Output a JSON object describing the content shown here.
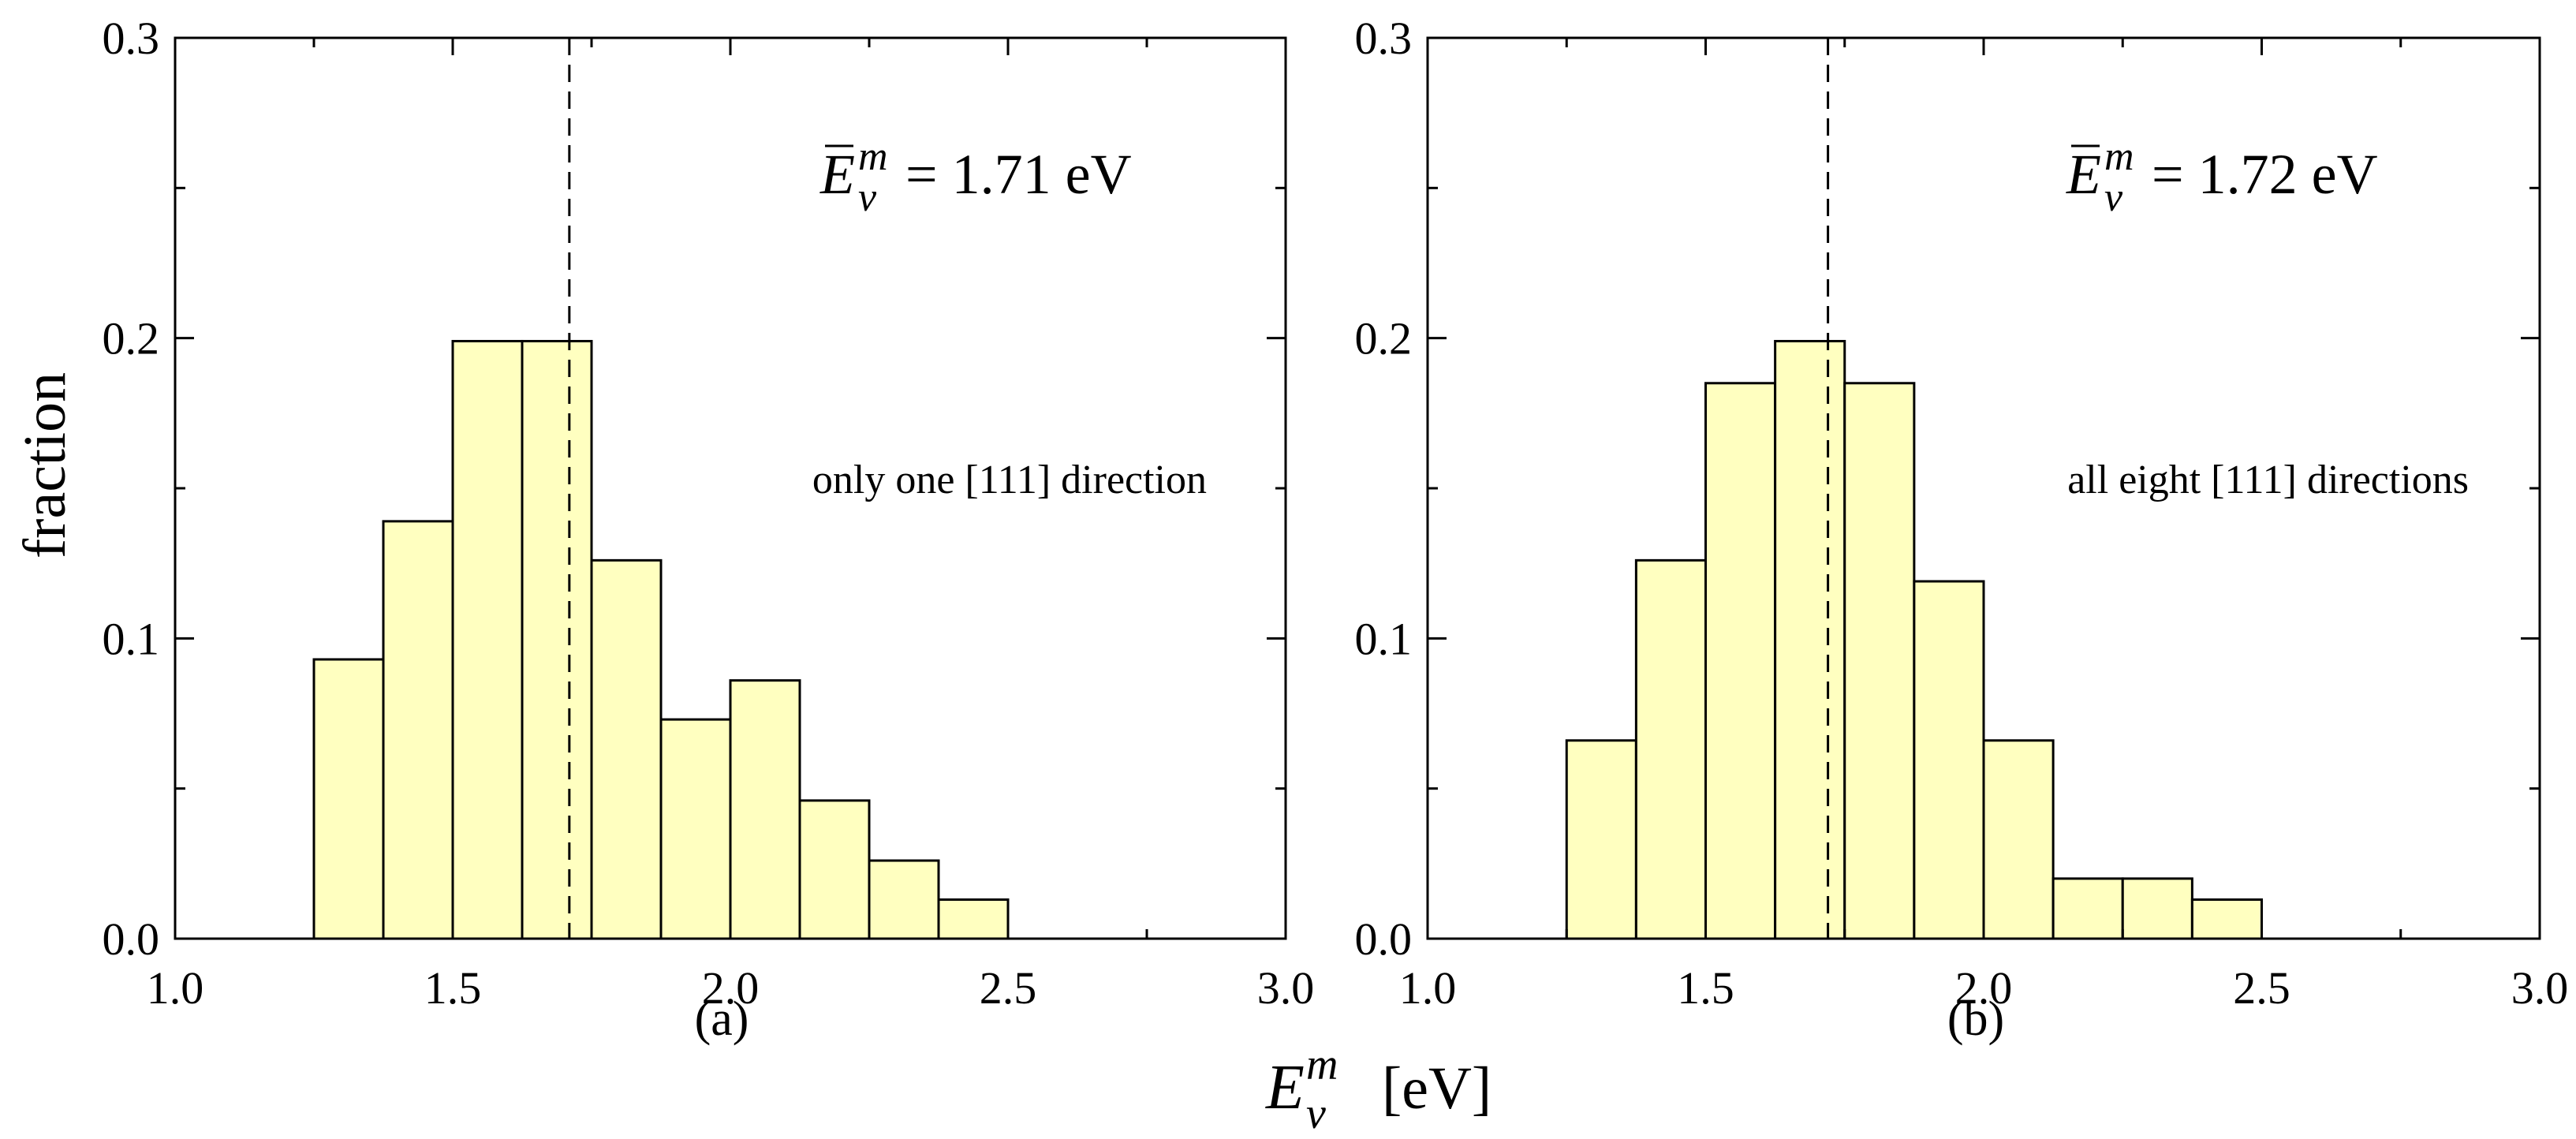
{
  "figure": {
    "xlabel_symbol": "E",
    "xlabel_superscript": "m",
    "xlabel_subscript": "v",
    "xlabel_unit": "[eV]",
    "ylabel": "fraction"
  },
  "chart_data": [
    {
      "type": "bar",
      "panel_label": "(a)",
      "annotation": "only one [111] direction",
      "mean_label": {
        "symbol": "E",
        "superscript": "m",
        "subscript": "v",
        "equals": "= 1.71 eV"
      },
      "mean_value": 1.71,
      "bin_edges": [
        1.25,
        1.375,
        1.5,
        1.625,
        1.75,
        1.875,
        2.0,
        2.125,
        2.25,
        2.375,
        2.5
      ],
      "values": [
        0.093,
        0.139,
        0.199,
        0.199,
        0.126,
        0.073,
        0.086,
        0.046,
        0.026,
        0.013
      ],
      "xlim": [
        1.0,
        3.0
      ],
      "ylim": [
        0.0,
        0.3
      ],
      "xticks": [
        "1.0",
        "1.5",
        "2.0",
        "2.5",
        "3.0"
      ],
      "yticks": [
        "0.0",
        "0.1",
        "0.2",
        "0.3"
      ],
      "bar_color": "#ffffc0",
      "edge_color": "#000000",
      "xlabel": "E_v^m [eV]",
      "ylabel": "fraction"
    },
    {
      "type": "bar",
      "panel_label": "(b)",
      "annotation": "all eight [111] directions",
      "mean_label": {
        "symbol": "E",
        "superscript": "m",
        "subscript": "v",
        "equals": "= 1.72 eV"
      },
      "mean_value": 1.72,
      "bin_edges": [
        1.25,
        1.375,
        1.5,
        1.625,
        1.75,
        1.875,
        2.0,
        2.125,
        2.25,
        2.375,
        2.5
      ],
      "values": [
        0.066,
        0.126,
        0.185,
        0.199,
        0.185,
        0.119,
        0.066,
        0.02,
        0.02,
        0.013
      ],
      "xlim": [
        1.0,
        3.0
      ],
      "ylim": [
        0.0,
        0.3
      ],
      "xticks": [
        "1.0",
        "1.5",
        "2.0",
        "2.5",
        "3.0"
      ],
      "yticks": [
        "0.0",
        "0.1",
        "0.2",
        "0.3"
      ],
      "bar_color": "#ffffc0",
      "edge_color": "#000000",
      "xlabel": "E_v^m [eV]",
      "ylabel": "fraction"
    }
  ]
}
